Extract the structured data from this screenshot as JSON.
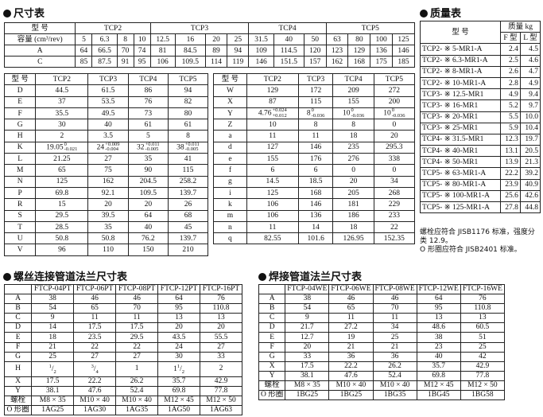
{
  "dimension": {
    "title": "尺寸表",
    "top": {
      "model_label": "型 号",
      "groups": [
        {
          "label": "TCP2",
          "span": 4
        },
        {
          "label": "TCP3",
          "span": 4
        },
        {
          "label": "TCP4",
          "span": 3
        },
        {
          "label": "TCP5",
          "span": 4
        }
      ],
      "rows": [
        [
          "容量 (cm³/rev)",
          "5",
          "6.3",
          "8",
          "10",
          "12.5",
          "16",
          "20",
          "25",
          "31.5",
          "40",
          "50",
          "63",
          "80",
          "100",
          "125"
        ],
        [
          "A",
          "64",
          "66.5",
          "70",
          "74",
          "81",
          "84.5",
          "89",
          "94",
          "109",
          "114.5",
          "120",
          "123",
          "129",
          "136",
          "146"
        ],
        [
          "C",
          "85",
          "87.5",
          "91",
          "95",
          "106",
          "109.5",
          "114",
          "119",
          "146",
          "151.5",
          "157",
          "162",
          "168",
          "175",
          "185"
        ]
      ]
    },
    "left": {
      "header": [
        "型 号",
        "TCP2",
        "TCP3",
        "TCP4",
        "TCP5"
      ],
      "rows": [
        [
          "D",
          "44.5",
          "61.5",
          "86",
          "94"
        ],
        [
          "E",
          "37",
          "53.5",
          "76",
          "82"
        ],
        [
          "F",
          "35.5",
          "49.5",
          "73",
          "80"
        ],
        [
          "G",
          "30",
          "40",
          "61",
          "61"
        ],
        [
          "H",
          "2",
          "3.5",
          "5",
          "8"
        ],
        [
          "K",
          {
            "base": "19.05",
            "up": "0",
            "low": "-0.021"
          },
          {
            "base": "24",
            "up": "+0.009",
            "low": "-0.004"
          },
          {
            "base": "32",
            "up": "+0.011",
            "low": "-0.005"
          },
          {
            "base": "38",
            "up": "+0.011",
            "low": "-0.005"
          }
        ],
        [
          "L",
          "21.25",
          "27",
          "35",
          "41"
        ],
        [
          "M",
          "65",
          "75",
          "90",
          "115"
        ],
        [
          "N",
          "125",
          "162",
          "204.5",
          "258.2"
        ],
        [
          "P",
          "69.8",
          "92.1",
          "109.5",
          "139.7"
        ],
        [
          "R",
          "15",
          "20",
          "20",
          "26"
        ],
        [
          "S",
          "29.5",
          "39.5",
          "64",
          "68"
        ],
        [
          "T",
          "28.5",
          "35",
          "40",
          "45"
        ],
        [
          "U",
          "50.8",
          "50.8",
          "76.2",
          "139.7"
        ],
        [
          "V",
          "96",
          "110",
          "150",
          "210"
        ]
      ]
    },
    "mid": {
      "header": [
        "型 号",
        "TCP2",
        "TCP3",
        "TCP4",
        "TCP5"
      ],
      "rows": [
        [
          "W",
          "129",
          "172",
          "209",
          "272"
        ],
        [
          "X",
          "87",
          "115",
          "155",
          "200"
        ],
        [
          "Y",
          {
            "base": "4.76",
            "up": "+0.024",
            "low": "+0.012"
          },
          {
            "base": "8",
            "up": "0",
            "low": "-0.036"
          },
          {
            "base": "10",
            "up": "0",
            "low": "-0.036"
          },
          {
            "base": "10",
            "up": "0",
            "low": "-0.036"
          }
        ],
        [
          "Z",
          "10",
          "8",
          "8",
          "0"
        ],
        [
          "a",
          "11",
          "11",
          "18",
          "20"
        ],
        [
          "d",
          "127",
          "146",
          "235",
          "295.3"
        ],
        [
          "e",
          "155",
          "176",
          "276",
          "338"
        ],
        [
          "f",
          "6",
          "6",
          "0",
          "0"
        ],
        [
          "g",
          "14.5",
          "18.5",
          "20",
          "34"
        ],
        [
          "i",
          "125",
          "168",
          "205",
          "268"
        ],
        [
          "k",
          "106",
          "146",
          "181",
          "229"
        ],
        [
          "m",
          "106",
          "136",
          "186",
          "233"
        ],
        [
          "n",
          "11",
          "14",
          "18",
          "22"
        ],
        [
          "q",
          "82.55",
          "101.6",
          "126.95",
          "152.35"
        ]
      ]
    }
  },
  "mass": {
    "title": "质量表",
    "model_label": "型 号",
    "mass_label": "质量 kg",
    "f_label": "F 型",
    "l_label": "L 型",
    "rows": [
      [
        "TCP2- ※ 5-MR1-A",
        "2.4",
        "4.5"
      ],
      [
        "TCP2- ※ 6.3-MR1-A",
        "2.5",
        "4.6"
      ],
      [
        "TCP2- ※ 8-MR1-A",
        "2.6",
        "4.7"
      ],
      [
        "TCP2- ※ 10-MR1-A",
        "2.8",
        "4.9"
      ],
      [
        "TCP3- ※ 12.5-MR1",
        "4.9",
        "9.4"
      ],
      [
        "TCP3- ※ 16-MR1",
        "5.2",
        "9.7"
      ],
      [
        "TCP3- ※ 20-MR1",
        "5.5",
        "10.0"
      ],
      [
        "TCP3- ※ 25-MR1",
        "5.9",
        "10.4"
      ],
      [
        "TCP4- ※ 31.5-MR1",
        "12.3",
        "19.7"
      ],
      [
        "TCP4- ※ 40-MR1",
        "13.1",
        "20.5"
      ],
      [
        "TCP4- ※ 50-MR1",
        "13.9",
        "21.3"
      ],
      [
        "TCP5- ※ 63-MR1-A",
        "22.2",
        "39.2"
      ],
      [
        "TCP5- ※ 80-MR1-A",
        "23.9",
        "40.9"
      ],
      [
        "TCP5- ※ 100-MR1-A",
        "25.6",
        "42.6"
      ],
      [
        "TCP5- ※ 125-MR1-A",
        "27.8",
        "44.8"
      ]
    ],
    "note1": "螺栓应符合 JISB1176 标准，强度分类 12.9。",
    "note2": "O 形圈应符合 JISB2401 标准。"
  },
  "threaded": {
    "title": "螺丝连接管道法兰尺寸表",
    "header": [
      "",
      "FTCP-04PT",
      "FTCP-06PT",
      "FTCP-08PT",
      "FTCP-12PT",
      "FTCP-16PT"
    ],
    "rows": [
      [
        "A",
        "38",
        "46",
        "46",
        "64",
        "76"
      ],
      [
        "B",
        "54",
        "65",
        "70",
        "95",
        "110.8"
      ],
      [
        "C",
        "9",
        "11",
        "11",
        "13",
        "13"
      ],
      [
        "D",
        "14",
        "17.5",
        "17.5",
        "20",
        "20"
      ],
      [
        "E",
        "18",
        "23.5",
        "29.5",
        "43.5",
        "55.5"
      ],
      [
        "F",
        "21",
        "22",
        "22",
        "24",
        "27"
      ],
      [
        "G",
        "25",
        "27",
        "27",
        "30",
        "33"
      ],
      [
        "H",
        {
          "whole": "",
          "num": "1",
          "den": "2"
        },
        {
          "whole": "",
          "num": "3",
          "den": "4"
        },
        "1",
        {
          "whole": "1",
          "num": "1",
          "den": "2"
        },
        "2"
      ],
      [
        "X",
        "17.5",
        "22.2",
        "26.2",
        "35.7",
        "42.9"
      ],
      [
        "Y",
        "38.1",
        "47.6",
        "52.4",
        "69.8",
        "77.8"
      ],
      [
        "螺栓",
        "M8 × 35",
        "M10 × 40",
        "M10 × 40",
        "M12 × 45",
        "M12 × 50"
      ],
      [
        "O 形圈",
        "1AG25",
        "1AG30",
        "1AG35",
        "1AG50",
        "1AG63"
      ]
    ]
  },
  "welded": {
    "title": "焊接管道法兰尺寸表",
    "header": [
      "",
      "FTCP-04WE",
      "FTCP-06WE",
      "FTCP-08WE",
      "FTCP-12WE",
      "FTCP-16WE"
    ],
    "rows": [
      [
        "A",
        "38",
        "46",
        "46",
        "64",
        "76"
      ],
      [
        "B",
        "54",
        "65",
        "70",
        "95",
        "110.8"
      ],
      [
        "C",
        "9",
        "11",
        "11",
        "13",
        "13"
      ],
      [
        "D",
        "21.7",
        "27.2",
        "34",
        "48.6",
        "60.5"
      ],
      [
        "E",
        "12.7",
        "19",
        "25",
        "38",
        "51"
      ],
      [
        "F",
        "20",
        "21",
        "21",
        "23",
        "25"
      ],
      [
        "G",
        "33",
        "36",
        "36",
        "40",
        "42"
      ],
      [
        "X",
        "17.5",
        "22.2",
        "26.2",
        "35.7",
        "42.9"
      ],
      [
        "Y",
        "38.1",
        "47.6",
        "52.4",
        "69.8",
        "77.8"
      ],
      [
        "螺栓",
        "M8 × 35",
        "M10 × 40",
        "M10 × 40",
        "M12 × 45",
        "M12 × 50"
      ],
      [
        "O 形圈",
        "1BG25",
        "1BG25",
        "1BG35",
        "1BG45",
        "1BG58"
      ]
    ]
  }
}
